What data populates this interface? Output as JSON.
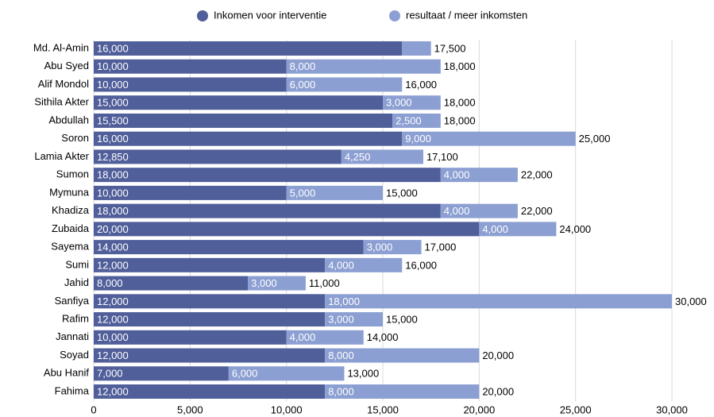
{
  "chart_data": {
    "type": "stacked-bar-horizontal",
    "categories": [
      "Md. Al-Amin",
      "Abu Syed",
      "Alif Mondol",
      "Sithila Akter",
      "Abdullah",
      "Soron",
      "Lamia Akter",
      "Sumon",
      "Mymuna",
      "Khadiza",
      "Zubaida",
      "Sayema",
      "Sumi",
      "Jahid",
      "Sanfiya",
      "Rafim",
      "Jannati",
      "Soyad",
      "Abu Hanif",
      "Fahima"
    ],
    "series": [
      {
        "name": "Inkomen voor interventie",
        "color": "#505e9a",
        "values": [
          16000,
          10000,
          10000,
          15000,
          15500,
          16000,
          12850,
          18000,
          10000,
          18000,
          20000,
          14000,
          12000,
          8000,
          12000,
          12000,
          10000,
          12000,
          7000,
          12000
        ],
        "value_labels": [
          "16,000",
          "10,000",
          "10,000",
          "15,000",
          "15,500",
          "16,000",
          "12,850",
          "18,000",
          "10,000",
          "18,000",
          "20,000",
          "14,000",
          "12,000",
          "8,000",
          "12,000",
          "12,000",
          "10,000",
          "12,000",
          "7,000",
          "12,000"
        ]
      },
      {
        "name": "resultaat / meer inkomsten",
        "color": "#8c9fd2",
        "values": [
          1500,
          8000,
          6000,
          3000,
          2500,
          9000,
          4250,
          4000,
          5000,
          4000,
          4000,
          3000,
          4000,
          3000,
          18000,
          3000,
          4000,
          8000,
          6000,
          8000
        ],
        "value_labels": [
          null,
          "8,000",
          "6,000",
          "3,000",
          "2,500",
          "9,000",
          "4,250",
          "4,000",
          "5,000",
          "4,000",
          "4,000",
          "3,000",
          "4,000",
          "3,000",
          "18,000",
          "3,000",
          "4,000",
          "8,000",
          "6,000",
          "8,000"
        ]
      }
    ],
    "totals": [
      17500,
      18000,
      16000,
      18000,
      18000,
      25000,
      17100,
      22000,
      15000,
      22000,
      24000,
      17000,
      16000,
      11000,
      30000,
      15000,
      14000,
      20000,
      13000,
      20000
    ],
    "total_labels": [
      "17,500",
      "18,000",
      "16,000",
      "18,000",
      "18,000",
      "25,000",
      "17,100",
      "22,000",
      "15,000",
      "22,000",
      "24,000",
      "17,000",
      "16,000",
      "11,000",
      "30,000",
      "15,000",
      "14,000",
      "20,000",
      "13,000",
      "20,000"
    ],
    "xlim": [
      0,
      30000
    ],
    "xticks": [
      0,
      {
        "value": 5000,
        "label": "5,000"
      },
      {
        "value": 10000,
        "label": "10,000"
      },
      {
        "value": 15000,
        "label": "15,000"
      },
      {
        "value": 20000,
        "label": "20,000"
      },
      {
        "value": 25000,
        "label": "25,000"
      },
      {
        "value": 30000,
        "label": "30,000"
      }
    ],
    "grid": true,
    "legend": "top"
  }
}
